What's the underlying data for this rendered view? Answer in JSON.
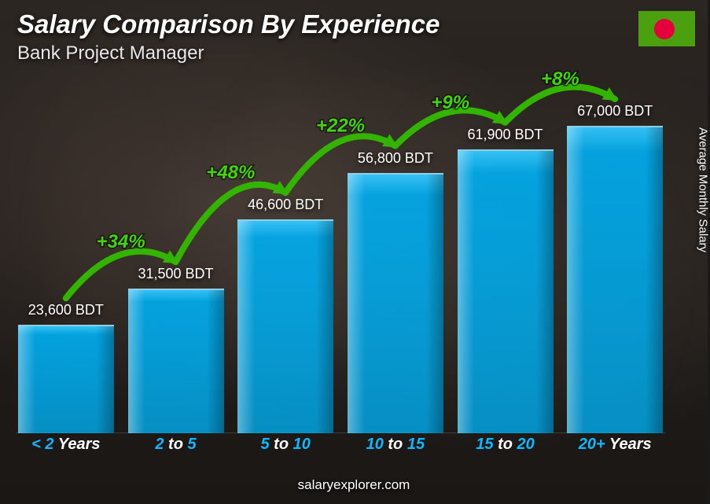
{
  "chart": {
    "type": "bar",
    "title": "Salary Comparison By Experience",
    "subtitle": "Bank Project Manager",
    "ylabel": "Average Monthly Salary",
    "footer": "salaryexplorer.com",
    "currency": "BDT",
    "max_value": 67000,
    "bar_color": "#00acee",
    "bar_highlight": "#35c8ff",
    "accent_color": "#11b8ff",
    "pct_color": "#43d40a",
    "arrow_color": "#33b400",
    "background_tone": "#241f1c",
    "title_fontsize": 33,
    "subtitle_fontsize": 24,
    "value_fontsize": 18,
    "category_fontsize": 20,
    "pct_fontsize": 24,
    "bars": [
      {
        "cat_pre": "< 2",
        "cat_post": " Years",
        "value": 23600,
        "value_label": "23,600 BDT"
      },
      {
        "cat_pre": "2",
        "cat_mid": " to ",
        "cat_post2": "5",
        "value": 31500,
        "value_label": "31,500 BDT",
        "pct": "+34%"
      },
      {
        "cat_pre": "5",
        "cat_mid": " to ",
        "cat_post2": "10",
        "value": 46600,
        "value_label": "46,600 BDT",
        "pct": "+48%"
      },
      {
        "cat_pre": "10",
        "cat_mid": " to ",
        "cat_post2": "15",
        "value": 56800,
        "value_label": "56,800 BDT",
        "pct": "+22%"
      },
      {
        "cat_pre": "15",
        "cat_mid": " to ",
        "cat_post2": "20",
        "value": 61900,
        "value_label": "61,900 BDT",
        "pct": "+9%"
      },
      {
        "cat_pre": "20+",
        "cat_post": " Years",
        "value": 67000,
        "value_label": "67,000 BDT",
        "pct": "+8%"
      }
    ]
  },
  "flag": {
    "bg": "#4aa00f",
    "dot": "#e4003a",
    "country": "Bangladesh"
  }
}
